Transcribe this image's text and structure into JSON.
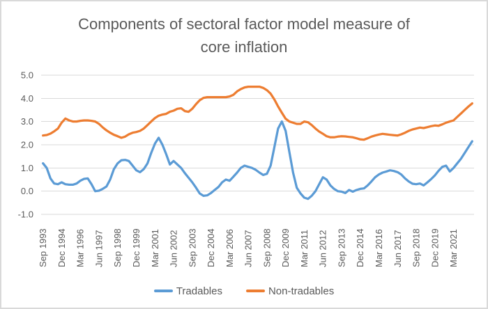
{
  "window": {
    "background": "#ffffff",
    "border_color": "#d9d9d9",
    "text_color": "#595959"
  },
  "chart_data": {
    "type": "line",
    "title": "Components of sectoral factor model measure of core inflation",
    "title_lines": [
      "Components of sectoral factor model measure of",
      "core inflation"
    ],
    "frequency": "quarterly",
    "first_period": "Sep 1993",
    "x_tick_labels": [
      "Sep 1993",
      "Dec 1994",
      "Mar 1996",
      "Jun 1997",
      "Sep 1998",
      "Dec 1999",
      "Mar 2001",
      "Jun 2002",
      "Sep 2003",
      "Dec 2004",
      "Mar 2006",
      "Jun 2007",
      "Sep 2008",
      "Dec 2009",
      "Mar 2011",
      "Jun 2012",
      "Sep 2013",
      "Dec 2014",
      "Mar 2016",
      "Jun 2017",
      "Sep 2018",
      "Dec 2019",
      "Mar 2021"
    ],
    "points_per_label": 5,
    "y_ticks": [
      "5.0",
      "4.0",
      "3.0",
      "2.0",
      "1.0",
      "0.0",
      "-1.0"
    ],
    "ylim": [
      -1.0,
      5.0
    ],
    "grid": true,
    "grid_color": "#d9d9d9",
    "legend_position": "bottom",
    "series": [
      {
        "name": "Tradables",
        "color": "#5B9BD5",
        "values": [
          1.2,
          1.0,
          0.55,
          0.33,
          0.3,
          0.38,
          0.3,
          0.28,
          0.28,
          0.33,
          0.45,
          0.53,
          0.55,
          0.3,
          0.0,
          0.02,
          0.1,
          0.2,
          0.5,
          0.95,
          1.2,
          1.33,
          1.35,
          1.3,
          1.1,
          0.9,
          0.82,
          0.95,
          1.2,
          1.65,
          2.05,
          2.3,
          2.0,
          1.6,
          1.15,
          1.3,
          1.15,
          1.0,
          0.78,
          0.58,
          0.38,
          0.15,
          -0.1,
          -0.2,
          -0.18,
          -0.08,
          0.05,
          0.18,
          0.38,
          0.5,
          0.45,
          0.62,
          0.8,
          1.0,
          1.1,
          1.05,
          1.0,
          0.92,
          0.8,
          0.7,
          0.75,
          1.1,
          1.9,
          2.7,
          3.0,
          2.6,
          1.7,
          0.8,
          0.15,
          -0.1,
          -0.28,
          -0.33,
          -0.2,
          0.0,
          0.3,
          0.6,
          0.5,
          0.25,
          0.1,
          0.0,
          -0.02,
          -0.08,
          0.05,
          -0.02,
          0.05,
          0.1,
          0.12,
          0.25,
          0.42,
          0.6,
          0.72,
          0.8,
          0.85,
          0.9,
          0.87,
          0.82,
          0.72,
          0.55,
          0.42,
          0.32,
          0.3,
          0.33,
          0.25,
          0.38,
          0.52,
          0.68,
          0.88,
          1.05,
          1.1,
          0.85,
          1.0,
          1.2,
          1.4,
          1.65,
          1.9,
          2.15
        ]
      },
      {
        "name": "Non-tradables",
        "color": "#ED7D31",
        "values": [
          2.4,
          2.42,
          2.48,
          2.58,
          2.7,
          2.95,
          3.13,
          3.05,
          3.0,
          3.0,
          3.03,
          3.05,
          3.05,
          3.03,
          3.0,
          2.9,
          2.75,
          2.62,
          2.52,
          2.43,
          2.37,
          2.3,
          2.35,
          2.45,
          2.52,
          2.55,
          2.6,
          2.7,
          2.85,
          3.0,
          3.15,
          3.25,
          3.3,
          3.33,
          3.42,
          3.47,
          3.55,
          3.57,
          3.45,
          3.42,
          3.55,
          3.75,
          3.92,
          4.02,
          4.05,
          4.05,
          4.05,
          4.05,
          4.05,
          4.05,
          4.08,
          4.15,
          4.3,
          4.4,
          4.47,
          4.5,
          4.5,
          4.5,
          4.5,
          4.45,
          4.35,
          4.2,
          3.95,
          3.65,
          3.38,
          3.12,
          3.0,
          2.95,
          2.9,
          2.9,
          3.0,
          2.97,
          2.85,
          2.7,
          2.57,
          2.47,
          2.37,
          2.32,
          2.32,
          2.35,
          2.37,
          2.36,
          2.34,
          2.32,
          2.28,
          2.23,
          2.22,
          2.28,
          2.35,
          2.4,
          2.44,
          2.47,
          2.45,
          2.43,
          2.41,
          2.4,
          2.45,
          2.52,
          2.6,
          2.66,
          2.7,
          2.74,
          2.72,
          2.76,
          2.8,
          2.83,
          2.82,
          2.88,
          2.95,
          3.0,
          3.05,
          3.2,
          3.35,
          3.5,
          3.65,
          3.78
        ]
      }
    ]
  }
}
